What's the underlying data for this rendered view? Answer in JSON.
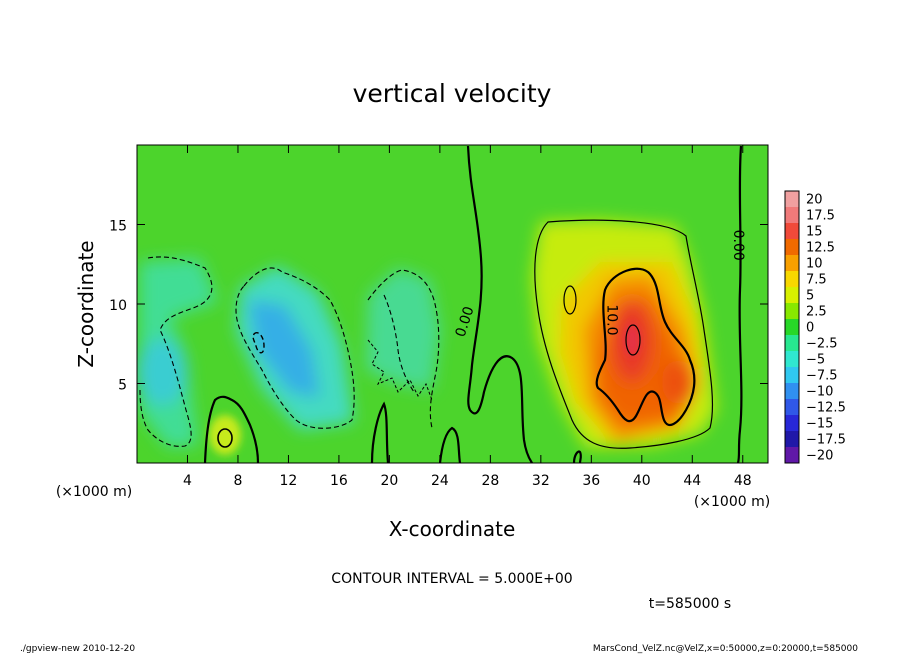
{
  "chart_data": {
    "type": "heatmap",
    "title": "vertical velocity",
    "xlabel": "X-coordinate",
    "ylabel": "Z-coordinate",
    "x_unit": "(×1000 m)",
    "z_unit": "(×1000 m)",
    "x_ticks": [
      4,
      8,
      12,
      16,
      20,
      24,
      28,
      32,
      36,
      40,
      44,
      48
    ],
    "z_ticks": [
      5,
      10,
      15
    ],
    "xlim": [
      0,
      50
    ],
    "zlim": [
      0,
      20
    ],
    "contour_labels": [
      {
        "text": "0.00",
        "x": 26.3,
        "z": 8.8,
        "angle": -72
      },
      {
        "text": "10.0",
        "x": 37.3,
        "z": 9.0,
        "angle": 90
      },
      {
        "text": "0.00",
        "x": 47.3,
        "z": 13.7,
        "angle": 90
      }
    ],
    "features": [
      {
        "x": 9.5,
        "z": 7.5,
        "value": -11
      },
      {
        "x": 13.0,
        "z": 5.5,
        "value": -7
      },
      {
        "x": 2.0,
        "z": 6.5,
        "value": -6
      },
      {
        "x": 3.5,
        "z": 11.0,
        "value": -4
      },
      {
        "x": 21.5,
        "z": 8.0,
        "value": -3
      },
      {
        "x": 7.0,
        "z": 1.5,
        "value": 4
      },
      {
        "x": 39.0,
        "z": 8.0,
        "value": 16
      },
      {
        "x": 39.5,
        "z": 6.0,
        "value": 12
      },
      {
        "x": 42.5,
        "z": 5.0,
        "value": 10
      },
      {
        "x": 38.0,
        "z": 11.0,
        "value": 7
      },
      {
        "x": 36.0,
        "z": 14.0,
        "value": 3
      }
    ],
    "colorbar": {
      "labels": [
        "20",
        "17.5",
        "15",
        "12.5",
        "10",
        "7.5",
        "5",
        "2.5",
        "0",
        "−2.5",
        "−5",
        "−7.5",
        "−10",
        "−12.5",
        "−15",
        "−17.5",
        "−20"
      ],
      "colors": [
        "#f0a0a0",
        "#f07a7a",
        "#f04a3a",
        "#f06a00",
        "#f8a000",
        "#f8d800",
        "#d8f000",
        "#88e800",
        "#28d828",
        "#28e890",
        "#30e8d0",
        "#30c8f0",
        "#3090f0",
        "#3058e8",
        "#2828d8",
        "#2018a8",
        "#6018a8"
      ]
    },
    "contour_interval": "CONTOUR INTERVAL = 5.000E+00",
    "time": "t=585000 s"
  },
  "footer": {
    "left": "./gpview-new  2010-12-20",
    "right": "MarsCond_VelZ.nc@VelZ,x=0:50000,z=0:20000,t=585000"
  }
}
